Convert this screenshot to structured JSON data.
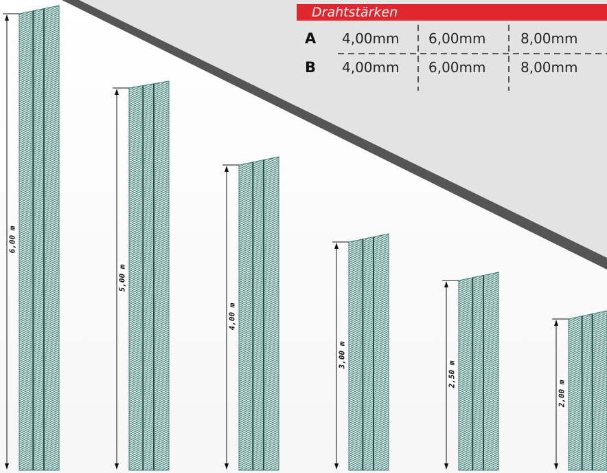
{
  "wire_table": {
    "title": "Drahtstärken",
    "rows": [
      {
        "label": "A",
        "values": [
          "4,00mm",
          "6,00mm",
          "8,00mm"
        ]
      },
      {
        "label": "B",
        "values": [
          "4,00mm",
          "6,00mm",
          "8,00mm"
        ]
      }
    ],
    "header_color": "#e1272e"
  },
  "panels": [
    {
      "height_label": "6,00 m"
    },
    {
      "height_label": "5,00 m"
    },
    {
      "height_label": "4,00 m"
    },
    {
      "height_label": "3,00 m"
    },
    {
      "height_label": "2,50 m"
    },
    {
      "height_label": "2,00 m"
    }
  ],
  "colors": {
    "mesh": "#3f7f77",
    "roof": "#555555",
    "background": "#e3e3e3"
  }
}
